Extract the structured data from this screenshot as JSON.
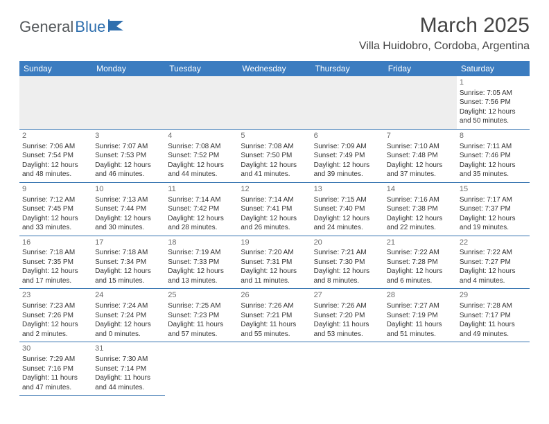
{
  "colors": {
    "header_bg": "#3b7cc0",
    "header_text": "#ffffff",
    "border": "#2f6fae",
    "blank_bg": "#eeeeee",
    "text": "#333333",
    "daynum": "#6b6b6b"
  },
  "logo": {
    "text1": "General",
    "text2": "Blue"
  },
  "title": {
    "month": "March 2025",
    "location": "Villa Huidobro, Cordoba, Argentina"
  },
  "day_headers": [
    "Sunday",
    "Monday",
    "Tuesday",
    "Wednesday",
    "Thursday",
    "Friday",
    "Saturday"
  ],
  "weeks": [
    [
      {
        "blank": true
      },
      {
        "blank": true
      },
      {
        "blank": true
      },
      {
        "blank": true
      },
      {
        "blank": true
      },
      {
        "blank": true
      },
      {
        "day": "1",
        "sunrise": "Sunrise: 7:05 AM",
        "sunset": "Sunset: 7:56 PM",
        "dl1": "Daylight: 12 hours",
        "dl2": "and 50 minutes."
      }
    ],
    [
      {
        "day": "2",
        "sunrise": "Sunrise: 7:06 AM",
        "sunset": "Sunset: 7:54 PM",
        "dl1": "Daylight: 12 hours",
        "dl2": "and 48 minutes."
      },
      {
        "day": "3",
        "sunrise": "Sunrise: 7:07 AM",
        "sunset": "Sunset: 7:53 PM",
        "dl1": "Daylight: 12 hours",
        "dl2": "and 46 minutes."
      },
      {
        "day": "4",
        "sunrise": "Sunrise: 7:08 AM",
        "sunset": "Sunset: 7:52 PM",
        "dl1": "Daylight: 12 hours",
        "dl2": "and 44 minutes."
      },
      {
        "day": "5",
        "sunrise": "Sunrise: 7:08 AM",
        "sunset": "Sunset: 7:50 PM",
        "dl1": "Daylight: 12 hours",
        "dl2": "and 41 minutes."
      },
      {
        "day": "6",
        "sunrise": "Sunrise: 7:09 AM",
        "sunset": "Sunset: 7:49 PM",
        "dl1": "Daylight: 12 hours",
        "dl2": "and 39 minutes."
      },
      {
        "day": "7",
        "sunrise": "Sunrise: 7:10 AM",
        "sunset": "Sunset: 7:48 PM",
        "dl1": "Daylight: 12 hours",
        "dl2": "and 37 minutes."
      },
      {
        "day": "8",
        "sunrise": "Sunrise: 7:11 AM",
        "sunset": "Sunset: 7:46 PM",
        "dl1": "Daylight: 12 hours",
        "dl2": "and 35 minutes."
      }
    ],
    [
      {
        "day": "9",
        "sunrise": "Sunrise: 7:12 AM",
        "sunset": "Sunset: 7:45 PM",
        "dl1": "Daylight: 12 hours",
        "dl2": "and 33 minutes."
      },
      {
        "day": "10",
        "sunrise": "Sunrise: 7:13 AM",
        "sunset": "Sunset: 7:44 PM",
        "dl1": "Daylight: 12 hours",
        "dl2": "and 30 minutes."
      },
      {
        "day": "11",
        "sunrise": "Sunrise: 7:14 AM",
        "sunset": "Sunset: 7:42 PM",
        "dl1": "Daylight: 12 hours",
        "dl2": "and 28 minutes."
      },
      {
        "day": "12",
        "sunrise": "Sunrise: 7:14 AM",
        "sunset": "Sunset: 7:41 PM",
        "dl1": "Daylight: 12 hours",
        "dl2": "and 26 minutes."
      },
      {
        "day": "13",
        "sunrise": "Sunrise: 7:15 AM",
        "sunset": "Sunset: 7:40 PM",
        "dl1": "Daylight: 12 hours",
        "dl2": "and 24 minutes."
      },
      {
        "day": "14",
        "sunrise": "Sunrise: 7:16 AM",
        "sunset": "Sunset: 7:38 PM",
        "dl1": "Daylight: 12 hours",
        "dl2": "and 22 minutes."
      },
      {
        "day": "15",
        "sunrise": "Sunrise: 7:17 AM",
        "sunset": "Sunset: 7:37 PM",
        "dl1": "Daylight: 12 hours",
        "dl2": "and 19 minutes."
      }
    ],
    [
      {
        "day": "16",
        "sunrise": "Sunrise: 7:18 AM",
        "sunset": "Sunset: 7:35 PM",
        "dl1": "Daylight: 12 hours",
        "dl2": "and 17 minutes."
      },
      {
        "day": "17",
        "sunrise": "Sunrise: 7:18 AM",
        "sunset": "Sunset: 7:34 PM",
        "dl1": "Daylight: 12 hours",
        "dl2": "and 15 minutes."
      },
      {
        "day": "18",
        "sunrise": "Sunrise: 7:19 AM",
        "sunset": "Sunset: 7:33 PM",
        "dl1": "Daylight: 12 hours",
        "dl2": "and 13 minutes."
      },
      {
        "day": "19",
        "sunrise": "Sunrise: 7:20 AM",
        "sunset": "Sunset: 7:31 PM",
        "dl1": "Daylight: 12 hours",
        "dl2": "and 11 minutes."
      },
      {
        "day": "20",
        "sunrise": "Sunrise: 7:21 AM",
        "sunset": "Sunset: 7:30 PM",
        "dl1": "Daylight: 12 hours",
        "dl2": "and 8 minutes."
      },
      {
        "day": "21",
        "sunrise": "Sunrise: 7:22 AM",
        "sunset": "Sunset: 7:28 PM",
        "dl1": "Daylight: 12 hours",
        "dl2": "and 6 minutes."
      },
      {
        "day": "22",
        "sunrise": "Sunrise: 7:22 AM",
        "sunset": "Sunset: 7:27 PM",
        "dl1": "Daylight: 12 hours",
        "dl2": "and 4 minutes."
      }
    ],
    [
      {
        "day": "23",
        "sunrise": "Sunrise: 7:23 AM",
        "sunset": "Sunset: 7:26 PM",
        "dl1": "Daylight: 12 hours",
        "dl2": "and 2 minutes."
      },
      {
        "day": "24",
        "sunrise": "Sunrise: 7:24 AM",
        "sunset": "Sunset: 7:24 PM",
        "dl1": "Daylight: 12 hours",
        "dl2": "and 0 minutes."
      },
      {
        "day": "25",
        "sunrise": "Sunrise: 7:25 AM",
        "sunset": "Sunset: 7:23 PM",
        "dl1": "Daylight: 11 hours",
        "dl2": "and 57 minutes."
      },
      {
        "day": "26",
        "sunrise": "Sunrise: 7:26 AM",
        "sunset": "Sunset: 7:21 PM",
        "dl1": "Daylight: 11 hours",
        "dl2": "and 55 minutes."
      },
      {
        "day": "27",
        "sunrise": "Sunrise: 7:26 AM",
        "sunset": "Sunset: 7:20 PM",
        "dl1": "Daylight: 11 hours",
        "dl2": "and 53 minutes."
      },
      {
        "day": "28",
        "sunrise": "Sunrise: 7:27 AM",
        "sunset": "Sunset: 7:19 PM",
        "dl1": "Daylight: 11 hours",
        "dl2": "and 51 minutes."
      },
      {
        "day": "29",
        "sunrise": "Sunrise: 7:28 AM",
        "sunset": "Sunset: 7:17 PM",
        "dl1": "Daylight: 11 hours",
        "dl2": "and 49 minutes."
      }
    ],
    [
      {
        "day": "30",
        "sunrise": "Sunrise: 7:29 AM",
        "sunset": "Sunset: 7:16 PM",
        "dl1": "Daylight: 11 hours",
        "dl2": "and 47 minutes."
      },
      {
        "day": "31",
        "sunrise": "Sunrise: 7:30 AM",
        "sunset": "Sunset: 7:14 PM",
        "dl1": "Daylight: 11 hours",
        "dl2": "and 44 minutes."
      },
      {
        "trailing_blank": true
      },
      {
        "trailing_blank": true
      },
      {
        "trailing_blank": true
      },
      {
        "trailing_blank": true
      },
      {
        "trailing_blank": true
      }
    ]
  ]
}
